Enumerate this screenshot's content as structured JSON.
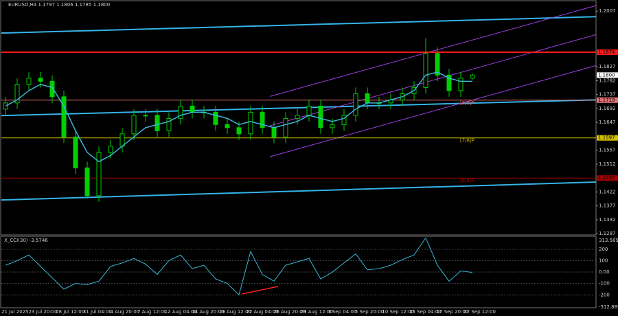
{
  "chart_data": {
    "type": "candlestick",
    "title": "EURUSD,H4  1.1797 1.1806 1.1785 1.1800",
    "color": "#00d000",
    "ma_color": "#3ab7d6",
    "x_labels": [
      "21 Jul 2025",
      "23 Jul 20:00",
      "28 Jul 12:00",
      "31 Jul 04:00",
      "4 Aug 20:00",
      "7 Aug 12:00",
      "12 Aug 04:00",
      "14 Aug 20:00",
      "19 Aug 12:00",
      "22 Aug 04:00",
      "26 Aug 20:00",
      "29 Aug 12:00",
      "3 Sep 04:00",
      "5 Sep 20:00",
      "10 Sep 12:00",
      "15 Sep 04:00",
      "17 Sep 20:00",
      "22 Sep 12:00"
    ],
    "open": [
      1.169,
      1.171,
      1.177,
      1.179,
      1.178,
      1.173,
      1.16,
      1.15,
      1.141,
      1.155,
      1.157,
      1.161,
      1.167,
      1.167,
      1.162,
      1.166,
      1.17,
      1.168,
      1.168,
      1.164,
      1.163,
      1.161,
      1.168,
      1.163,
      1.16,
      1.166,
      1.167,
      1.17,
      1.163,
      1.164,
      1.167,
      1.174,
      1.171,
      1.171,
      1.172,
      1.174,
      1.176,
      1.187,
      1.18,
      1.175,
      1.179
    ],
    "high": [
      1.173,
      1.179,
      1.181,
      1.181,
      1.18,
      1.175,
      1.162,
      1.152,
      1.157,
      1.159,
      1.163,
      1.169,
      1.169,
      1.169,
      1.168,
      1.172,
      1.172,
      1.17,
      1.17,
      1.166,
      1.165,
      1.17,
      1.17,
      1.165,
      1.168,
      1.169,
      1.172,
      1.172,
      1.166,
      1.169,
      1.176,
      1.176,
      1.173,
      1.174,
      1.176,
      1.178,
      1.192,
      1.189,
      1.182,
      1.181,
      1.1806
    ],
    "low": [
      1.167,
      1.169,
      1.175,
      1.176,
      1.171,
      1.158,
      1.148,
      1.14,
      1.139,
      1.153,
      1.155,
      1.159,
      1.165,
      1.16,
      1.16,
      1.164,
      1.166,
      1.166,
      1.162,
      1.161,
      1.159,
      1.159,
      1.161,
      1.158,
      1.158,
      1.164,
      1.165,
      1.161,
      1.161,
      1.162,
      1.165,
      1.169,
      1.169,
      1.169,
      1.17,
      1.172,
      1.174,
      1.178,
      1.173,
      1.173,
      1.1785
    ],
    "close": [
      1.171,
      1.177,
      1.179,
      1.178,
      1.173,
      1.16,
      1.15,
      1.141,
      1.155,
      1.157,
      1.161,
      1.167,
      1.167,
      1.162,
      1.166,
      1.17,
      1.168,
      1.168,
      1.164,
      1.163,
      1.161,
      1.168,
      1.163,
      1.16,
      1.166,
      1.167,
      1.17,
      1.163,
      1.164,
      1.167,
      1.174,
      1.171,
      1.171,
      1.172,
      1.174,
      1.176,
      1.187,
      1.18,
      1.175,
      1.179,
      1.18
    ],
    "ma": [
      1.17,
      1.172,
      1.175,
      1.177,
      1.176,
      1.17,
      1.162,
      1.155,
      1.152,
      1.154,
      1.157,
      1.16,
      1.163,
      1.164,
      1.165,
      1.167,
      1.168,
      1.168,
      1.167,
      1.166,
      1.164,
      1.165,
      1.164,
      1.163,
      1.164,
      1.165,
      1.167,
      1.166,
      1.165,
      1.166,
      1.169,
      1.171,
      1.171,
      1.172,
      1.173,
      1.175,
      1.18,
      1.181,
      1.179,
      1.178,
      1.178
    ],
    "ylim": [
      1.1283,
      1.2043
    ],
    "yticks": [
      1.2007,
      1.1827,
      1.1782,
      1.1737,
      1.1692,
      1.1647,
      1.1557,
      1.1512,
      1.1422,
      1.1377,
      1.1332,
      1.1287
    ],
    "last_price": {
      "value": 1.18,
      "label": "1.1800"
    },
    "levels": [
      {
        "value": 1.1874,
        "color": "#ff1a1a"
      },
      {
        "value": 1.1719,
        "color": "#e07070",
        "label": "[8/8]P"
      },
      {
        "value": 1.1597,
        "color": "#d4c000",
        "label": "[7/8]P"
      },
      {
        "value": 1.1467,
        "color": "#a00000",
        "label": "[6/8]P"
      }
    ],
    "channels": [
      {
        "color": "#34b4e8",
        "values": [
          1.1936,
          1.1989
        ]
      },
      {
        "color": "#34b4e8",
        "values": [
          1.1669,
          1.172
        ]
      },
      {
        "color": "#34b4e8",
        "values": [
          1.1396,
          1.1454
        ]
      },
      {
        "color": "#a040e0",
        "values": [
          1.1731,
          1.2025
        ]
      },
      {
        "color": "#a040e0",
        "values": [
          1.1636,
          1.1931
        ]
      },
      {
        "color": "#a040e0",
        "values": [
          1.1536,
          1.1831
        ]
      }
    ],
    "cci": {
      "title": "X_CCI(30) -3.5746",
      "color": "#3ab7d6",
      "values": [
        60,
        100,
        150,
        50,
        -50,
        -150,
        -100,
        -110,
        -80,
        50,
        80,
        120,
        70,
        -20,
        100,
        150,
        30,
        60,
        -60,
        -100,
        -200,
        180,
        -20,
        -80,
        60,
        90,
        120,
        -60,
        0,
        80,
        160,
        20,
        30,
        60,
        110,
        150,
        300,
        60,
        -80,
        10,
        -3.5746
      ],
      "ylim": [
        -312.8897,
        313.5897
      ],
      "yticks": [
        200,
        100,
        {
          "value": 0,
          "label": "0.00"
        },
        -100,
        -200
      ],
      "ylim_labels": [
        "-312.8897",
        "313.5897"
      ]
    }
  }
}
